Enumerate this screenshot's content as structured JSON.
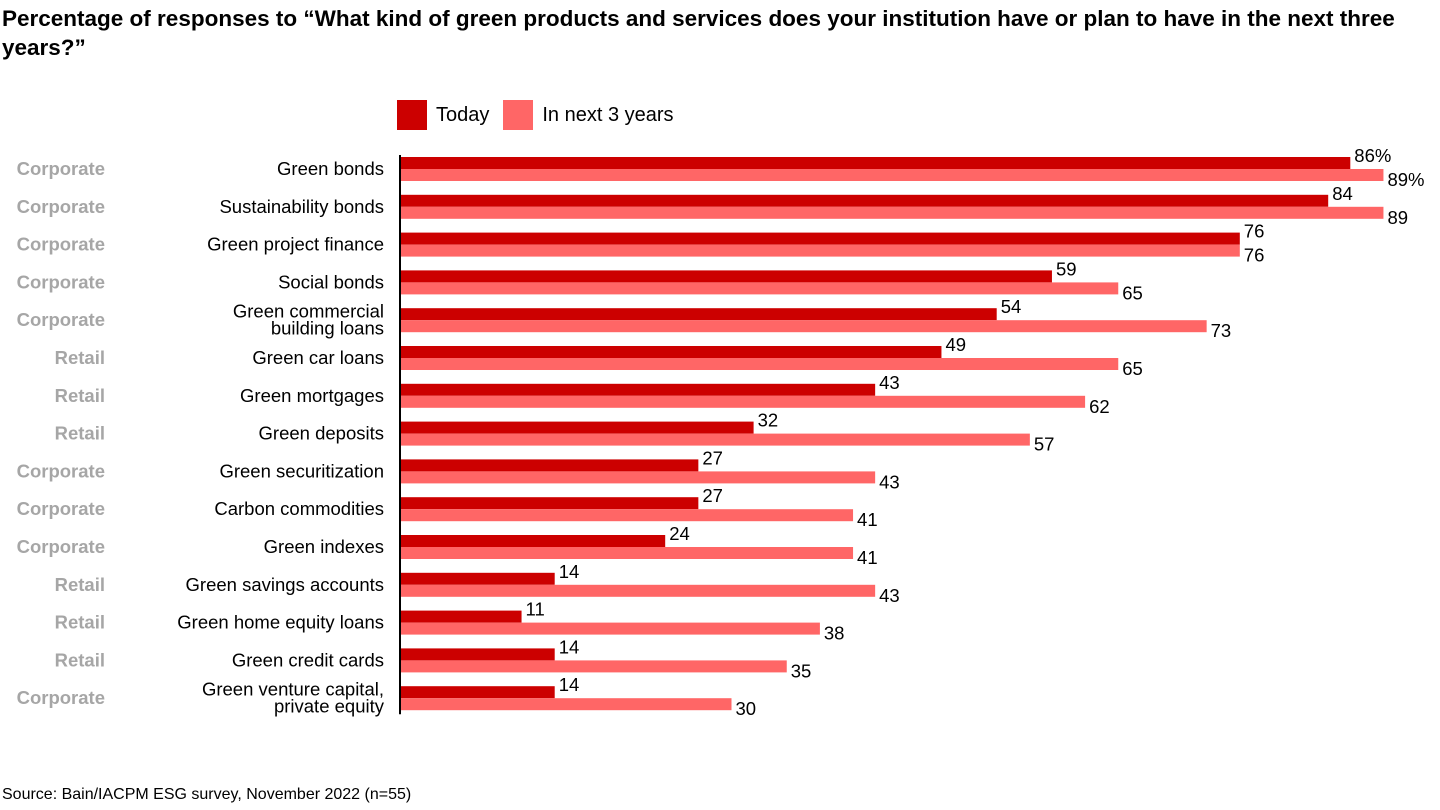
{
  "title": "Percentage of responses to “What kind of green products and services does your institution have or plan to have in the next three years?”",
  "source": "Source: Bain/IACPM ESG survey, November 2022 (n=55)",
  "colors": {
    "today": "#cc0000",
    "next": "#ff6666",
    "type": "#a6a6a6"
  },
  "chart_data": {
    "type": "bar",
    "orientation": "horizontal",
    "xlim": [
      0,
      100
    ],
    "grid": false,
    "legend_position": "top",
    "categories": [
      "Green bonds",
      "Sustainability bonds",
      "Green project finance",
      "Social bonds",
      "Green commercial building loans",
      "Green car loans",
      "Green mortgages",
      "Green deposits",
      "Green securitization",
      "Carbon commodities",
      "Green indexes",
      "Green savings accounts",
      "Green home equity loans",
      "Green credit cards",
      "Green venture capital, private equity"
    ],
    "category_lines": [
      [
        "Green bonds"
      ],
      [
        "Sustainability bonds"
      ],
      [
        "Green project finance"
      ],
      [
        "Social bonds"
      ],
      [
        "Green commercial",
        "building loans"
      ],
      [
        "Green car loans"
      ],
      [
        "Green mortgages"
      ],
      [
        "Green deposits"
      ],
      [
        "Green securitization"
      ],
      [
        "Carbon commodities"
      ],
      [
        "Green indexes"
      ],
      [
        "Green savings accounts"
      ],
      [
        "Green home equity loans"
      ],
      [
        "Green credit cards"
      ],
      [
        "Green venture capital,",
        "private equity"
      ]
    ],
    "segment": [
      "Corporate",
      "Corporate",
      "Corporate",
      "Corporate",
      "Corporate",
      "Retail",
      "Retail",
      "Retail",
      "Corporate",
      "Corporate",
      "Corporate",
      "Retail",
      "Retail",
      "Retail",
      "Corporate"
    ],
    "series": [
      {
        "name": "Today",
        "values": [
          86,
          84,
          76,
          59,
          54,
          49,
          43,
          32,
          27,
          27,
          24,
          14,
          11,
          14,
          14
        ]
      },
      {
        "name": "In next 3 years",
        "values": [
          89,
          89,
          76,
          65,
          73,
          65,
          62,
          57,
          43,
          41,
          41,
          43,
          38,
          35,
          30
        ]
      }
    ],
    "first_label_suffix": "%"
  }
}
